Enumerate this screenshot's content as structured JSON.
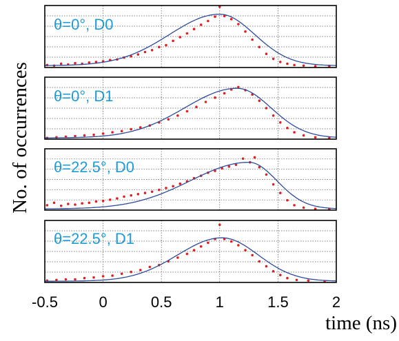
{
  "chart_data": {
    "type": "scatter",
    "ylabel": "No. of occurrences",
    "xlabel": "time (ns)",
    "xlim": [
      -0.5,
      2.0
    ],
    "ylim": [
      0,
      1.0
    ],
    "x_ticks": [
      "-0.5",
      "0",
      "0.5",
      "1",
      "1.5",
      "2"
    ],
    "x_tick_values": [
      -0.5,
      0,
      0.5,
      1,
      1.5,
      2
    ],
    "grid": true,
    "series_colors": {
      "measured": "#e02020",
      "fit": "#2c4a9a"
    },
    "label_color": "#1e9ad6",
    "panels": [
      {
        "label": "θ=0°, D0",
        "fit": {
          "peak_x": 1.0,
          "peak_y": 0.86,
          "sigma_left": 0.43,
          "sigma_right": 0.3,
          "baseline": 0.03
        },
        "points": [
          [
            -0.48,
            0.04
          ],
          [
            -0.42,
            0.03
          ],
          [
            -0.36,
            0.06
          ],
          [
            -0.3,
            0.05
          ],
          [
            -0.24,
            0.07
          ],
          [
            -0.18,
            0.06
          ],
          [
            -0.12,
            0.08
          ],
          [
            -0.06,
            0.09
          ],
          [
            0.0,
            0.1
          ],
          [
            0.06,
            0.12
          ],
          [
            0.12,
            0.13
          ],
          [
            0.18,
            0.16
          ],
          [
            0.24,
            0.18
          ],
          [
            0.3,
            0.21
          ],
          [
            0.36,
            0.25
          ],
          [
            0.42,
            0.28
          ],
          [
            0.48,
            0.33
          ],
          [
            0.54,
            0.36
          ],
          [
            0.6,
            0.43
          ],
          [
            0.66,
            0.49
          ],
          [
            0.72,
            0.55
          ],
          [
            0.78,
            0.62
          ],
          [
            0.84,
            0.69
          ],
          [
            0.9,
            0.75
          ],
          [
            0.96,
            0.82
          ],
          [
            1.0,
            0.98
          ],
          [
            1.04,
            0.83
          ],
          [
            1.1,
            0.78
          ],
          [
            1.16,
            0.7
          ],
          [
            1.22,
            0.58
          ],
          [
            1.28,
            0.45
          ],
          [
            1.34,
            0.33
          ],
          [
            1.4,
            0.22
          ],
          [
            1.46,
            0.14
          ],
          [
            1.52,
            0.09
          ],
          [
            1.58,
            0.06
          ],
          [
            1.64,
            0.04
          ],
          [
            1.72,
            0.03
          ],
          [
            1.82,
            0.02
          ],
          [
            1.94,
            0.02
          ]
        ]
      },
      {
        "label": "θ=0°, D1",
        "fit": {
          "peak_x": 1.15,
          "peak_y": 0.82,
          "sigma_left": 0.45,
          "sigma_right": 0.29,
          "baseline": 0.02
        },
        "points": [
          [
            -0.48,
            0.02
          ],
          [
            -0.4,
            0.03
          ],
          [
            -0.32,
            0.04
          ],
          [
            -0.24,
            0.05
          ],
          [
            -0.16,
            0.06
          ],
          [
            -0.08,
            0.07
          ],
          [
            0.0,
            0.09
          ],
          [
            0.08,
            0.11
          ],
          [
            0.16,
            0.13
          ],
          [
            0.24,
            0.16
          ],
          [
            0.32,
            0.19
          ],
          [
            0.4,
            0.22
          ],
          [
            0.48,
            0.27
          ],
          [
            0.56,
            0.32
          ],
          [
            0.64,
            0.38
          ],
          [
            0.72,
            0.45
          ],
          [
            0.8,
            0.52
          ],
          [
            0.88,
            0.6
          ],
          [
            0.96,
            0.67
          ],
          [
            1.04,
            0.74
          ],
          [
            1.1,
            0.8
          ],
          [
            1.16,
            0.84
          ],
          [
            1.22,
            0.79
          ],
          [
            1.28,
            0.72
          ],
          [
            1.34,
            0.62
          ],
          [
            1.4,
            0.5
          ],
          [
            1.46,
            0.38
          ],
          [
            1.52,
            0.27
          ],
          [
            1.58,
            0.18
          ],
          [
            1.64,
            0.11
          ],
          [
            1.72,
            0.06
          ],
          [
            1.82,
            0.03
          ],
          [
            1.94,
            0.02
          ]
        ]
      },
      {
        "label": "θ=22.5°, D0",
        "fit": {
          "peak_x": 1.25,
          "peak_y": 0.78,
          "sigma_left": 0.5,
          "sigma_right": 0.24,
          "baseline": 0.02
        },
        "points": [
          [
            -0.48,
            0.08
          ],
          [
            -0.42,
            0.12
          ],
          [
            -0.36,
            0.07
          ],
          [
            -0.3,
            0.1
          ],
          [
            -0.24,
            0.09
          ],
          [
            -0.18,
            0.11
          ],
          [
            -0.12,
            0.12
          ],
          [
            -0.06,
            0.14
          ],
          [
            0.0,
            0.15
          ],
          [
            0.06,
            0.17
          ],
          [
            0.12,
            0.19
          ],
          [
            0.18,
            0.22
          ],
          [
            0.24,
            0.24
          ],
          [
            0.3,
            0.26
          ],
          [
            0.36,
            0.28
          ],
          [
            0.42,
            0.3
          ],
          [
            0.48,
            0.33
          ],
          [
            0.54,
            0.36
          ],
          [
            0.6,
            0.39
          ],
          [
            0.66,
            0.43
          ],
          [
            0.72,
            0.47
          ],
          [
            0.78,
            0.52
          ],
          [
            0.84,
            0.56
          ],
          [
            0.9,
            0.61
          ],
          [
            0.96,
            0.64
          ],
          [
            1.02,
            0.68
          ],
          [
            1.08,
            0.71
          ],
          [
            1.14,
            0.74
          ],
          [
            1.2,
            0.84
          ],
          [
            1.26,
            0.78
          ],
          [
            1.3,
            0.86
          ],
          [
            1.34,
            0.7
          ],
          [
            1.4,
            0.58
          ],
          [
            1.46,
            0.42
          ],
          [
            1.52,
            0.28
          ],
          [
            1.58,
            0.16
          ],
          [
            1.64,
            0.08
          ],
          [
            1.72,
            0.04
          ],
          [
            1.82,
            0.02
          ],
          [
            1.94,
            0.02
          ]
        ]
      },
      {
        "label": "θ=22.5°, D1",
        "fit": {
          "peak_x": 1.02,
          "peak_y": 0.72,
          "sigma_left": 0.38,
          "sigma_right": 0.31,
          "baseline": 0.02
        },
        "points": [
          [
            -0.48,
            0.03
          ],
          [
            -0.4,
            0.04
          ],
          [
            -0.32,
            0.05
          ],
          [
            -0.24,
            0.05
          ],
          [
            -0.16,
            0.07
          ],
          [
            -0.08,
            0.08
          ],
          [
            0.0,
            0.1
          ],
          [
            0.08,
            0.11
          ],
          [
            0.16,
            0.14
          ],
          [
            0.24,
            0.17
          ],
          [
            0.32,
            0.2
          ],
          [
            0.4,
            0.25
          ],
          [
            0.48,
            0.28
          ],
          [
            0.56,
            0.34
          ],
          [
            0.64,
            0.4
          ],
          [
            0.72,
            0.46
          ],
          [
            0.78,
            0.52
          ],
          [
            0.84,
            0.58
          ],
          [
            0.9,
            0.64
          ],
          [
            0.96,
            0.7
          ],
          [
            1.0,
            0.93
          ],
          [
            1.04,
            0.7
          ],
          [
            1.1,
            0.66
          ],
          [
            1.16,
            0.6
          ],
          [
            1.22,
            0.52
          ],
          [
            1.28,
            0.44
          ],
          [
            1.34,
            0.34
          ],
          [
            1.4,
            0.26
          ],
          [
            1.46,
            0.18
          ],
          [
            1.52,
            0.12
          ],
          [
            1.58,
            0.07
          ],
          [
            1.66,
            0.04
          ],
          [
            1.76,
            0.03
          ],
          [
            1.9,
            0.02
          ]
        ]
      }
    ]
  }
}
